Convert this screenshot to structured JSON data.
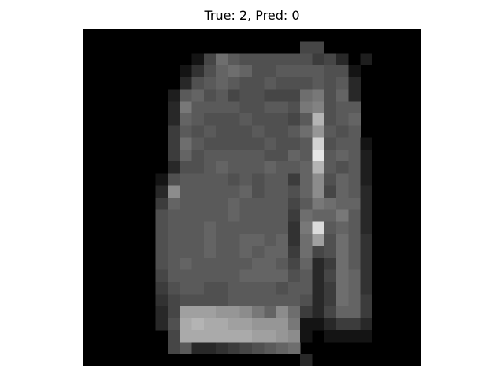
{
  "figure": {
    "title": "True: 2, Pred: 0"
  },
  "image": {
    "description_kind": "28x28 grayscale pixel grid",
    "colors": {
      "background": "#000000",
      "page": "#ffffff"
    },
    "pixels": [
      [
        0,
        0,
        0,
        0,
        0,
        0,
        0,
        0,
        0,
        0,
        0,
        0,
        0,
        0,
        0,
        0,
        0,
        0,
        0,
        0,
        0,
        0,
        0,
        0,
        0,
        0,
        0,
        0
      ],
      [
        0,
        0,
        0,
        0,
        0,
        0,
        0,
        0,
        0,
        0,
        0,
        0,
        0,
        0,
        0,
        0,
        0,
        0,
        70,
        70,
        0,
        0,
        0,
        0,
        0,
        0,
        0,
        0
      ],
      [
        0,
        0,
        0,
        0,
        0,
        0,
        0,
        0,
        0,
        20,
        70,
        110,
        90,
        80,
        80,
        80,
        80,
        80,
        80,
        60,
        70,
        40,
        0,
        30,
        0,
        0,
        0,
        0
      ],
      [
        0,
        0,
        0,
        0,
        0,
        0,
        0,
        0,
        20,
        50,
        80,
        100,
        110,
        100,
        80,
        80,
        90,
        90,
        90,
        90,
        80,
        80,
        20,
        0,
        0,
        0,
        0,
        0
      ],
      [
        0,
        0,
        0,
        0,
        0,
        0,
        0,
        0,
        40,
        80,
        90,
        100,
        90,
        80,
        80,
        90,
        80,
        80,
        80,
        90,
        80,
        90,
        40,
        0,
        0,
        0,
        0,
        0
      ],
      [
        0,
        0,
        0,
        0,
        0,
        0,
        0,
        30,
        90,
        100,
        80,
        90,
        70,
        80,
        80,
        70,
        70,
        70,
        110,
        120,
        80,
        100,
        40,
        0,
        0,
        0,
        0,
        0
      ],
      [
        0,
        0,
        0,
        0,
        0,
        0,
        0,
        40,
        120,
        90,
        90,
        90,
        90,
        80,
        80,
        90,
        90,
        80,
        120,
        130,
        80,
        90,
        90,
        0,
        0,
        0,
        0,
        0
      ],
      [
        0,
        0,
        0,
        0,
        0,
        0,
        0,
        40,
        100,
        90,
        80,
        80,
        80,
        90,
        80,
        80,
        80,
        70,
        90,
        180,
        80,
        90,
        100,
        0,
        0,
        0,
        0,
        0
      ],
      [
        0,
        0,
        0,
        0,
        0,
        0,
        0,
        60,
        90,
        80,
        90,
        80,
        80,
        80,
        90,
        80,
        80,
        90,
        110,
        150,
        90,
        80,
        90,
        0,
        0,
        0,
        0,
        0
      ],
      [
        0,
        0,
        0,
        0,
        0,
        0,
        0,
        60,
        110,
        90,
        80,
        80,
        80,
        80,
        80,
        90,
        80,
        80,
        90,
        210,
        80,
        90,
        90,
        20,
        0,
        0,
        0,
        0
      ],
      [
        0,
        0,
        0,
        0,
        0,
        0,
        0,
        60,
        100,
        80,
        90,
        90,
        90,
        90,
        90,
        80,
        80,
        100,
        90,
        230,
        90,
        100,
        90,
        30,
        0,
        0,
        0,
        0
      ],
      [
        0,
        0,
        0,
        0,
        0,
        0,
        0,
        40,
        80,
        80,
        90,
        100,
        90,
        90,
        90,
        100,
        90,
        90,
        100,
        180,
        90,
        80,
        90,
        30,
        0,
        0,
        0,
        0
      ],
      [
        0,
        0,
        0,
        0,
        0,
        0,
        20,
        80,
        90,
        90,
        90,
        90,
        80,
        90,
        80,
        90,
        90,
        60,
        100,
        140,
        80,
        100,
        90,
        30,
        0,
        0,
        0,
        0
      ],
      [
        0,
        0,
        0,
        0,
        0,
        0,
        40,
        140,
        90,
        90,
        90,
        90,
        90,
        100,
        80,
        90,
        90,
        80,
        100,
        140,
        70,
        100,
        90,
        40,
        0,
        0,
        0,
        0
      ],
      [
        0,
        0,
        0,
        0,
        0,
        0,
        60,
        100,
        90,
        90,
        90,
        90,
        100,
        90,
        90,
        90,
        90,
        70,
        90,
        120,
        110,
        100,
        100,
        40,
        0,
        0,
        0,
        0
      ],
      [
        0,
        0,
        0,
        0,
        0,
        0,
        80,
        90,
        90,
        90,
        90,
        90,
        100,
        90,
        90,
        90,
        90,
        60,
        110,
        100,
        100,
        120,
        90,
        40,
        0,
        0,
        0,
        0
      ],
      [
        0,
        0,
        0,
        0,
        0,
        0,
        80,
        90,
        90,
        90,
        100,
        90,
        90,
        90,
        90,
        90,
        90,
        50,
        120,
        220,
        90,
        100,
        90,
        40,
        0,
        0,
        0,
        0
      ],
      [
        0,
        0,
        0,
        0,
        0,
        0,
        80,
        90,
        90,
        90,
        100,
        90,
        90,
        100,
        100,
        90,
        100,
        50,
        110,
        160,
        80,
        110,
        90,
        50,
        0,
        0,
        0,
        0
      ],
      [
        0,
        0,
        0,
        0,
        0,
        0,
        80,
        90,
        90,
        90,
        100,
        90,
        90,
        100,
        90,
        100,
        100,
        60,
        110,
        70,
        80,
        110,
        90,
        50,
        0,
        0,
        0,
        0
      ],
      [
        0,
        0,
        0,
        0,
        0,
        0,
        80,
        90,
        100,
        90,
        90,
        90,
        90,
        90,
        100,
        100,
        90,
        70,
        100,
        40,
        60,
        110,
        90,
        50,
        0,
        0,
        0,
        0
      ],
      [
        0,
        0,
        0,
        0,
        0,
        0,
        70,
        90,
        90,
        90,
        90,
        90,
        90,
        100,
        100,
        100,
        100,
        80,
        90,
        40,
        70,
        110,
        100,
        50,
        0,
        0,
        0,
        0
      ],
      [
        0,
        0,
        0,
        0,
        0,
        0,
        60,
        80,
        90,
        90,
        80,
        80,
        90,
        90,
        90,
        90,
        80,
        90,
        90,
        40,
        60,
        110,
        100,
        50,
        0,
        0,
        0,
        0
      ],
      [
        0,
        0,
        0,
        0,
        0,
        0,
        50,
        70,
        80,
        80,
        80,
        80,
        90,
        90,
        90,
        90,
        90,
        90,
        80,
        40,
        60,
        110,
        100,
        60,
        0,
        0,
        0,
        0
      ],
      [
        0,
        0,
        0,
        0,
        0,
        0,
        40,
        70,
        160,
        160,
        160,
        150,
        150,
        140,
        120,
        100,
        140,
        110,
        60,
        40,
        70,
        100,
        100,
        60,
        0,
        0,
        0,
        0
      ],
      [
        0,
        0,
        0,
        0,
        0,
        0,
        40,
        80,
        170,
        180,
        170,
        170,
        160,
        160,
        150,
        150,
        150,
        120,
        20,
        20,
        40,
        60,
        60,
        40,
        0,
        0,
        0,
        0
      ],
      [
        0,
        0,
        0,
        0,
        0,
        0,
        0,
        70,
        170,
        170,
        170,
        170,
        170,
        170,
        160,
        160,
        150,
        140,
        20,
        0,
        20,
        20,
        20,
        20,
        0,
        0,
        0,
        0
      ],
      [
        0,
        0,
        0,
        0,
        0,
        0,
        0,
        70,
        90,
        40,
        40,
        50,
        60,
        70,
        80,
        90,
        100,
        110,
        0,
        0,
        0,
        0,
        0,
        0,
        0,
        0,
        0,
        0
      ],
      [
        0,
        0,
        0,
        0,
        0,
        0,
        0,
        0,
        0,
        0,
        0,
        0,
        0,
        0,
        0,
        0,
        0,
        0,
        40,
        0,
        0,
        0,
        0,
        0,
        0,
        0,
        0,
        0
      ]
    ]
  }
}
